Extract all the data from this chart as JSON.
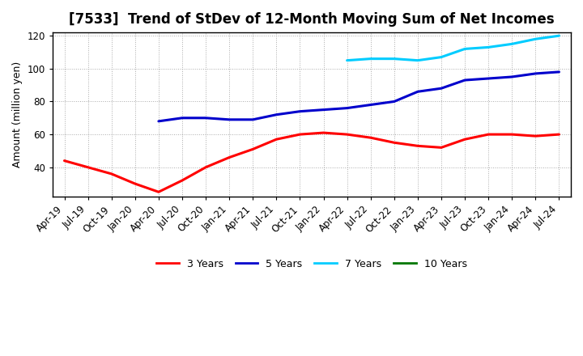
{
  "title": "[7533]  Trend of StDev of 12-Month Moving Sum of Net Incomes",
  "ylabel": "Amount (million yen)",
  "ylim": [
    22,
    122
  ],
  "yticks": [
    40,
    60,
    80,
    100,
    120
  ],
  "line_colors": {
    "3yr": "#ff0000",
    "5yr": "#0000cc",
    "7yr": "#00ccff",
    "10yr": "#007700"
  },
  "legend_labels": [
    "3 Years",
    "5 Years",
    "7 Years",
    "10 Years"
  ],
  "x_tick_labels": [
    "Apr-19",
    "Jul-19",
    "Oct-19",
    "Jan-20",
    "Apr-20",
    "Jul-20",
    "Oct-20",
    "Jan-21",
    "Apr-21",
    "Jul-21",
    "Oct-21",
    "Jan-22",
    "Apr-22",
    "Jul-22",
    "Oct-22",
    "Jan-23",
    "Apr-23",
    "Jul-23",
    "Oct-23",
    "Jan-24",
    "Apr-24",
    "Jul-24"
  ],
  "data_3yr": [
    44,
    40,
    36,
    30,
    25,
    32,
    40,
    46,
    51,
    57,
    60,
    61,
    60,
    58,
    55,
    53,
    52,
    57,
    60,
    60,
    59,
    60
  ],
  "data_5yr": [
    null,
    null,
    null,
    null,
    68,
    70,
    70,
    69,
    69,
    72,
    74,
    75,
    76,
    78,
    80,
    86,
    88,
    93,
    94,
    95,
    97,
    98
  ],
  "data_7yr": [
    null,
    null,
    null,
    null,
    null,
    null,
    null,
    null,
    null,
    null,
    null,
    null,
    105,
    106,
    106,
    105,
    107,
    112,
    113,
    115,
    118,
    120
  ],
  "data_10yr": [
    null,
    null,
    null,
    null,
    null,
    null,
    null,
    null,
    null,
    null,
    null,
    null,
    null,
    null,
    null,
    null,
    null,
    null,
    null,
    null,
    null,
    null
  ],
  "background_color": "#ffffff",
  "plot_bg_color": "#ffffff",
  "grid_color": "#aaaaaa",
  "line_width": 2.2,
  "title_fontsize": 12,
  "axis_fontsize": 9,
  "tick_fontsize": 8.5,
  "legend_fontsize": 9
}
